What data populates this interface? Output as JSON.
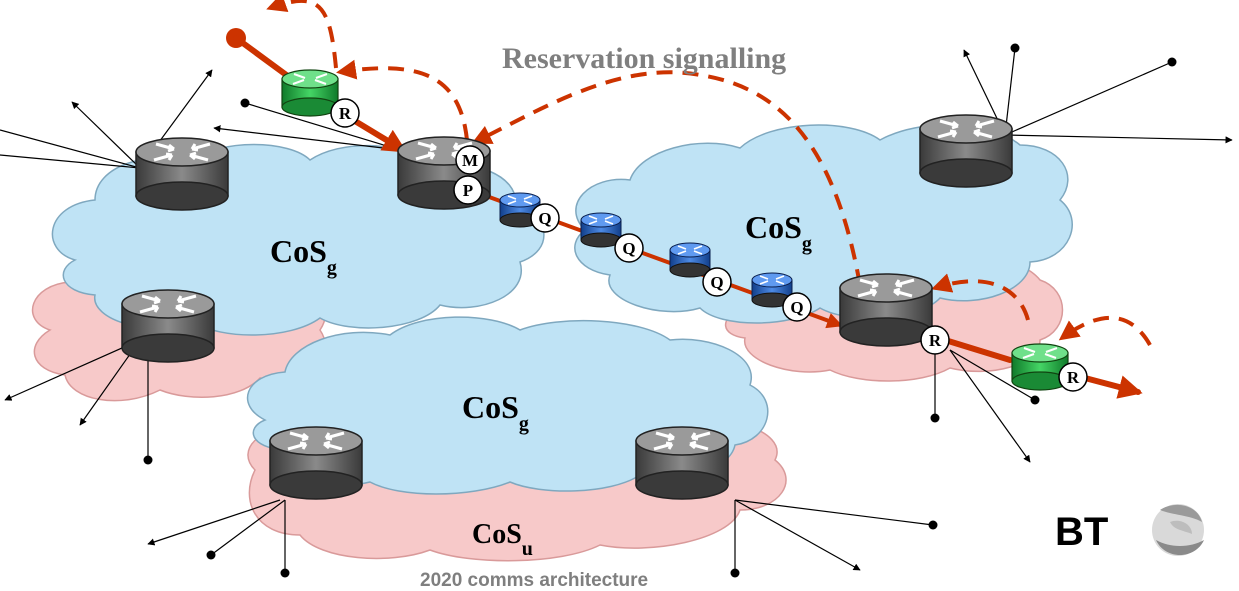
{
  "diagram": {
    "title": "Reservation signalling",
    "footer": "2020 comms architecture",
    "logo_text": "BT",
    "clouds": [
      {
        "label": "CoS",
        "sub": "g"
      },
      {
        "label": "CoS",
        "sub": "g"
      },
      {
        "label": "CoS",
        "sub": "g"
      },
      {
        "label": "CoS",
        "sub": "u"
      }
    ],
    "badges": {
      "R": "R",
      "M": "M",
      "P": "P",
      "Q": "Q"
    },
    "colors": {
      "guaranteed_cloud": "#bfe3f5",
      "unguaranteed_cloud": "#f7c9c9",
      "data_path": "#cc3300",
      "signalling": "#cc3300",
      "core_router": "#6b6b6b",
      "edge_router": "#2fbf4f",
      "queue_router": "#2f6fd0"
    }
  }
}
